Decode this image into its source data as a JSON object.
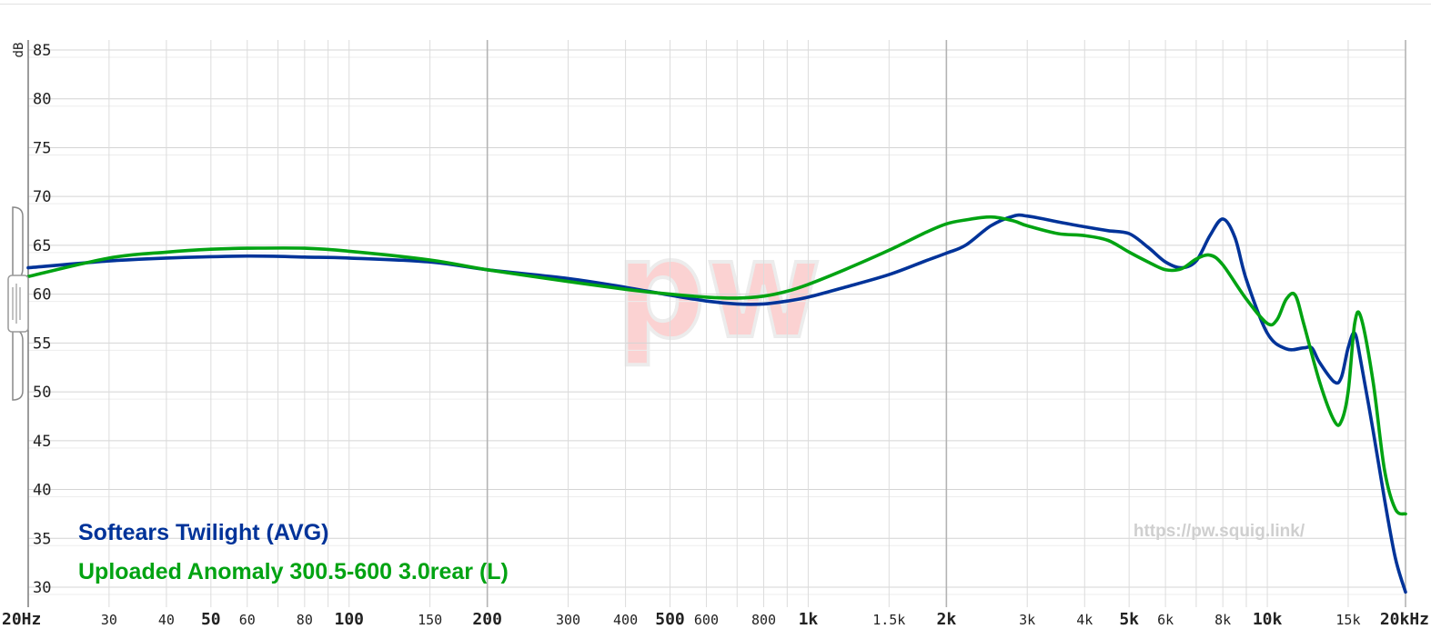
{
  "chart_data": {
    "type": "line",
    "ylabel": "dB",
    "ylim": [
      30,
      85
    ],
    "xlim": [
      20,
      20000
    ],
    "x_scale": "log",
    "grid": true,
    "legend_position": "bottom-left",
    "y_ticks": [
      {
        "value": 85,
        "label": "85"
      },
      {
        "value": 80,
        "label": "80"
      },
      {
        "value": 75,
        "label": "75"
      },
      {
        "value": 70,
        "label": "70"
      },
      {
        "value": 65,
        "label": "65"
      },
      {
        "value": 60,
        "label": "60"
      },
      {
        "value": 55,
        "label": "55"
      },
      {
        "value": 50,
        "label": "50"
      },
      {
        "value": 45,
        "label": "45"
      },
      {
        "value": 40,
        "label": "40"
      },
      {
        "value": 35,
        "label": "35"
      },
      {
        "value": 30,
        "label": "30"
      }
    ],
    "x_ticks": [
      {
        "value": 20,
        "label": "20Hz",
        "major": true
      },
      {
        "value": 30,
        "label": "30",
        "major": false
      },
      {
        "value": 40,
        "label": "40",
        "major": false
      },
      {
        "value": 50,
        "label": "50",
        "major": true
      },
      {
        "value": 60,
        "label": "60",
        "major": false
      },
      {
        "value": 80,
        "label": "80",
        "major": false
      },
      {
        "value": 100,
        "label": "100",
        "major": true
      },
      {
        "value": 150,
        "label": "150",
        "major": false
      },
      {
        "value": 200,
        "label": "200",
        "major": true
      },
      {
        "value": 300,
        "label": "300",
        "major": false
      },
      {
        "value": 400,
        "label": "400",
        "major": false
      },
      {
        "value": 500,
        "label": "500",
        "major": true
      },
      {
        "value": 600,
        "label": "600",
        "major": false
      },
      {
        "value": 800,
        "label": "800",
        "major": false
      },
      {
        "value": 1000,
        "label": "1k",
        "major": true
      },
      {
        "value": 1500,
        "label": "1.5k",
        "major": false
      },
      {
        "value": 2000,
        "label": "2k",
        "major": true
      },
      {
        "value": 3000,
        "label": "3k",
        "major": false
      },
      {
        "value": 4000,
        "label": "4k",
        "major": false
      },
      {
        "value": 5000,
        "label": "5k",
        "major": true
      },
      {
        "value": 6000,
        "label": "6k",
        "major": false
      },
      {
        "value": 8000,
        "label": "8k",
        "major": false
      },
      {
        "value": 10000,
        "label": "10k",
        "major": true
      },
      {
        "value": 15000,
        "label": "15k",
        "major": false
      },
      {
        "value": 20000,
        "label": "20kHz",
        "major": true
      }
    ],
    "x_grid_lines": [
      20,
      30,
      40,
      50,
      60,
      70,
      80,
      90,
      100,
      150,
      200,
      300,
      400,
      500,
      600,
      700,
      800,
      900,
      1000,
      1500,
      2000,
      3000,
      4000,
      5000,
      6000,
      7000,
      8000,
      9000,
      10000,
      15000,
      20000
    ],
    "x_grid_major": [
      20,
      200,
      2000,
      20000
    ],
    "series": [
      {
        "name": "Softears Twilight (AVG)",
        "color": "#003399",
        "points": [
          [
            20,
            62.7
          ],
          [
            30,
            63.4
          ],
          [
            40,
            63.7
          ],
          [
            60,
            63.9
          ],
          [
            80,
            63.8
          ],
          [
            100,
            63.7
          ],
          [
            150,
            63.3
          ],
          [
            200,
            62.5
          ],
          [
            300,
            61.6
          ],
          [
            400,
            60.7
          ],
          [
            500,
            59.9
          ],
          [
            600,
            59.3
          ],
          [
            700,
            59.0
          ],
          [
            800,
            59.0
          ],
          [
            900,
            59.3
          ],
          [
            1000,
            59.7
          ],
          [
            1200,
            60.7
          ],
          [
            1500,
            62.0
          ],
          [
            1800,
            63.4
          ],
          [
            2000,
            64.2
          ],
          [
            2200,
            65.0
          ],
          [
            2500,
            67.0
          ],
          [
            2800,
            68.0
          ],
          [
            3000,
            68.0
          ],
          [
            3500,
            67.4
          ],
          [
            4000,
            66.9
          ],
          [
            4500,
            66.5
          ],
          [
            5000,
            66.2
          ],
          [
            5500,
            64.8
          ],
          [
            6000,
            63.3
          ],
          [
            6500,
            62.7
          ],
          [
            7000,
            63.4
          ],
          [
            7500,
            66.0
          ],
          [
            8000,
            67.7
          ],
          [
            8500,
            65.8
          ],
          [
            9000,
            61.5
          ],
          [
            10000,
            56.0
          ],
          [
            11000,
            54.4
          ],
          [
            12000,
            54.5
          ],
          [
            12500,
            54.5
          ],
          [
            13000,
            53.0
          ],
          [
            14000,
            51.0
          ],
          [
            14500,
            51.5
          ],
          [
            15000,
            54.5
          ],
          [
            15500,
            56.0
          ],
          [
            16000,
            53.0
          ],
          [
            17000,
            46.0
          ],
          [
            18000,
            39.0
          ],
          [
            19000,
            33.0
          ],
          [
            20000,
            29.5
          ]
        ]
      },
      {
        "name": "Uploaded Anomaly 300.5-600 3.0rear (L)",
        "color": "#00a312",
        "points": [
          [
            20,
            61.8
          ],
          [
            30,
            63.7
          ],
          [
            40,
            64.3
          ],
          [
            50,
            64.6
          ],
          [
            60,
            64.7
          ],
          [
            80,
            64.7
          ],
          [
            100,
            64.4
          ],
          [
            150,
            63.5
          ],
          [
            200,
            62.5
          ],
          [
            300,
            61.3
          ],
          [
            400,
            60.5
          ],
          [
            500,
            60.0
          ],
          [
            600,
            59.7
          ],
          [
            700,
            59.6
          ],
          [
            800,
            59.8
          ],
          [
            900,
            60.3
          ],
          [
            1000,
            61.0
          ],
          [
            1200,
            62.5
          ],
          [
            1500,
            64.5
          ],
          [
            1800,
            66.3
          ],
          [
            2000,
            67.2
          ],
          [
            2200,
            67.6
          ],
          [
            2500,
            67.9
          ],
          [
            2800,
            67.5
          ],
          [
            3000,
            67.0
          ],
          [
            3500,
            66.2
          ],
          [
            4000,
            66.0
          ],
          [
            4500,
            65.5
          ],
          [
            5000,
            64.3
          ],
          [
            5500,
            63.3
          ],
          [
            6000,
            62.5
          ],
          [
            6500,
            62.6
          ],
          [
            7000,
            63.6
          ],
          [
            7500,
            64.0
          ],
          [
            8000,
            63.0
          ],
          [
            9000,
            59.5
          ],
          [
            10000,
            57.0
          ],
          [
            10500,
            57.4
          ],
          [
            11000,
            59.5
          ],
          [
            11500,
            59.9
          ],
          [
            12000,
            57.0
          ],
          [
            13000,
            51.0
          ],
          [
            14000,
            47.0
          ],
          [
            14500,
            47.0
          ],
          [
            15000,
            50.0
          ],
          [
            15500,
            57.0
          ],
          [
            16000,
            57.6
          ],
          [
            17000,
            51.0
          ],
          [
            18000,
            42.0
          ],
          [
            19000,
            38.0
          ],
          [
            20000,
            37.5
          ]
        ]
      }
    ],
    "annotations": [
      "https://pw.squig.link/"
    ],
    "watermark": "pw"
  }
}
